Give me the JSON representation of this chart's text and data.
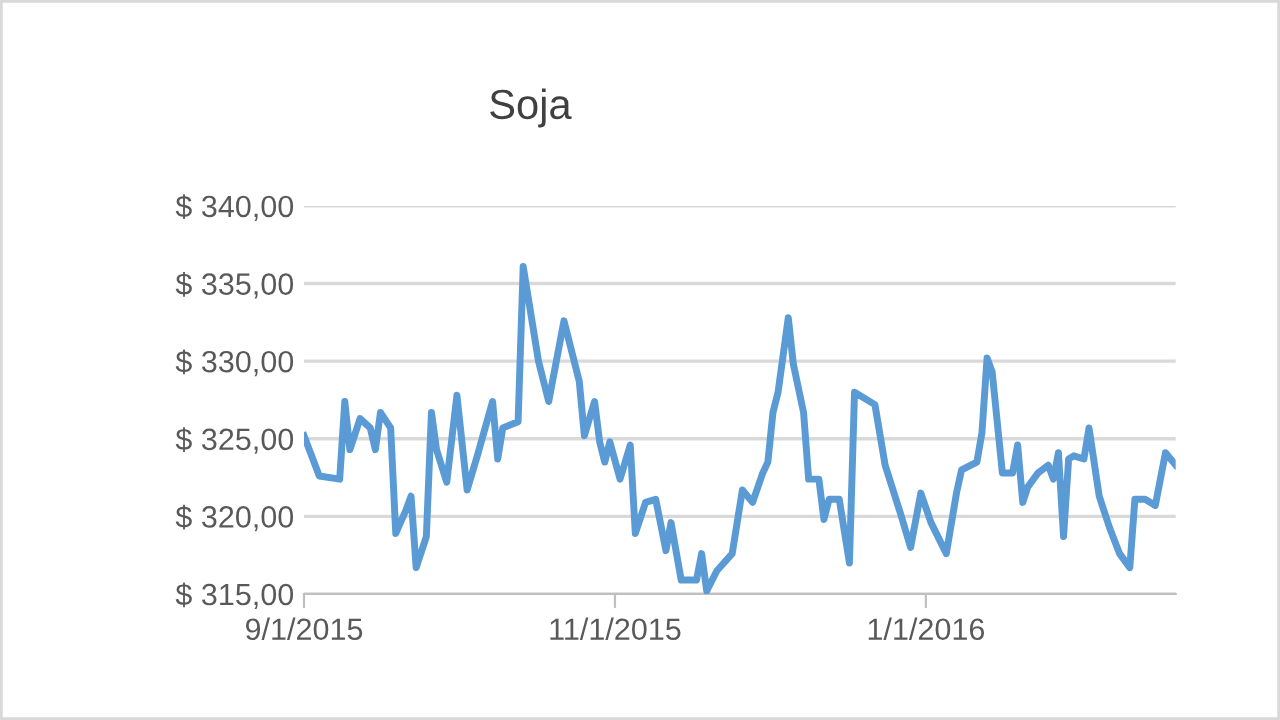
{
  "chart_data": {
    "type": "line",
    "title": "Soja",
    "x": [
      "2015-09-01",
      "2015-09-04",
      "2015-09-08",
      "2015-09-09",
      "2015-09-10",
      "2015-09-12",
      "2015-09-14",
      "2015-09-15",
      "2015-09-16",
      "2015-09-18",
      "2015-09-19",
      "2015-09-21",
      "2015-09-22",
      "2015-09-23",
      "2015-09-25",
      "2015-09-26",
      "2015-09-27",
      "2015-09-29",
      "2015-10-01",
      "2015-10-03",
      "2015-10-05",
      "2015-10-08",
      "2015-10-09",
      "2015-10-10",
      "2015-10-13",
      "2015-10-14",
      "2015-10-17",
      "2015-10-19",
      "2015-10-22",
      "2015-10-25",
      "2015-10-26",
      "2015-10-28",
      "2015-10-29",
      "2015-10-30",
      "2015-10-31",
      "2015-11-02",
      "2015-11-04",
      "2015-11-05",
      "2015-11-07",
      "2015-11-09",
      "2015-11-11",
      "2015-11-12",
      "2015-11-14",
      "2015-11-17",
      "2015-11-18",
      "2015-11-19",
      "2015-11-21",
      "2015-11-24",
      "2015-11-26",
      "2015-11-28",
      "2015-11-30",
      "2015-12-01",
      "2015-12-02",
      "2015-12-03",
      "2015-12-05",
      "2015-12-06",
      "2015-12-08",
      "2015-12-09",
      "2015-12-11",
      "2015-12-12",
      "2015-12-13",
      "2015-12-15",
      "2015-12-17",
      "2015-12-18",
      "2015-12-22",
      "2015-12-24",
      "2015-12-27",
      "2015-12-29",
      "2015-12-31",
      "2016-01-02",
      "2016-01-05",
      "2016-01-07",
      "2016-01-08",
      "2016-01-11",
      "2016-01-12",
      "2016-01-13",
      "2016-01-14",
      "2016-01-16",
      "2016-01-18",
      "2016-01-19",
      "2016-01-20",
      "2016-01-21",
      "2016-01-23",
      "2016-01-25",
      "2016-01-26",
      "2016-01-27",
      "2016-01-28",
      "2016-01-29",
      "2016-01-30",
      "2016-02-01",
      "2016-02-02",
      "2016-02-04",
      "2016-02-06",
      "2016-02-08",
      "2016-02-10",
      "2016-02-11",
      "2016-02-13",
      "2016-02-15",
      "2016-02-17",
      "2016-02-19"
    ],
    "series": [
      {
        "color": "#5b9bd5",
        "values": [
          325.2,
          322.6,
          322.4,
          327.4,
          324.3,
          326.3,
          325.7,
          324.3,
          326.7,
          325.7,
          318.9,
          320.4,
          321.3,
          316.7,
          318.7,
          326.7,
          324.3,
          322.2,
          327.8,
          321.7,
          323.9,
          327.4,
          323.7,
          325.7,
          326.1,
          336.1,
          330.0,
          327.4,
          332.6,
          328.7,
          325.2,
          327.4,
          324.8,
          323.5,
          324.8,
          322.4,
          324.6,
          318.9,
          320.9,
          321.1,
          317.8,
          319.6,
          315.9,
          315.9,
          317.6,
          315.2,
          316.5,
          317.6,
          321.7,
          320.9,
          322.8,
          323.5,
          326.7,
          328.0,
          332.8,
          329.8,
          326.7,
          322.4,
          322.4,
          319.8,
          321.1,
          321.1,
          317.0,
          328.0,
          327.2,
          323.3,
          320.2,
          318.0,
          321.5,
          319.6,
          317.6,
          321.5,
          323.0,
          323.5,
          325.4,
          330.2,
          329.3,
          322.8,
          322.8,
          324.6,
          320.9,
          321.9,
          322.8,
          323.3,
          322.4,
          324.1,
          318.7,
          323.7,
          323.9,
          323.7,
          325.7,
          321.3,
          319.3,
          317.6,
          316.7,
          321.1,
          321.1,
          320.7,
          324.1,
          323.3
        ]
      }
    ],
    "xlim": [
      "2015-09-01",
      "2016-02-19"
    ],
    "xticks": [
      {
        "value": "2015-09-01",
        "label": "9/1/2015"
      },
      {
        "value": "2015-11-01",
        "label": "11/1/2015"
      },
      {
        "value": "2016-01-01",
        "label": "1/1/2016"
      }
    ],
    "ylim": [
      315,
      340
    ],
    "yticks": [
      {
        "value": 315,
        "label": "$ 315,00"
      },
      {
        "value": 320,
        "label": "$ 320,00"
      },
      {
        "value": 325,
        "label": "$ 325,00"
      },
      {
        "value": 330,
        "label": "$ 330,00"
      },
      {
        "value": 335,
        "label": "$ 335,00"
      },
      {
        "value": 340,
        "label": "$ 340,00"
      }
    ],
    "grid": "y",
    "marker": "none",
    "line_style": "solid"
  }
}
